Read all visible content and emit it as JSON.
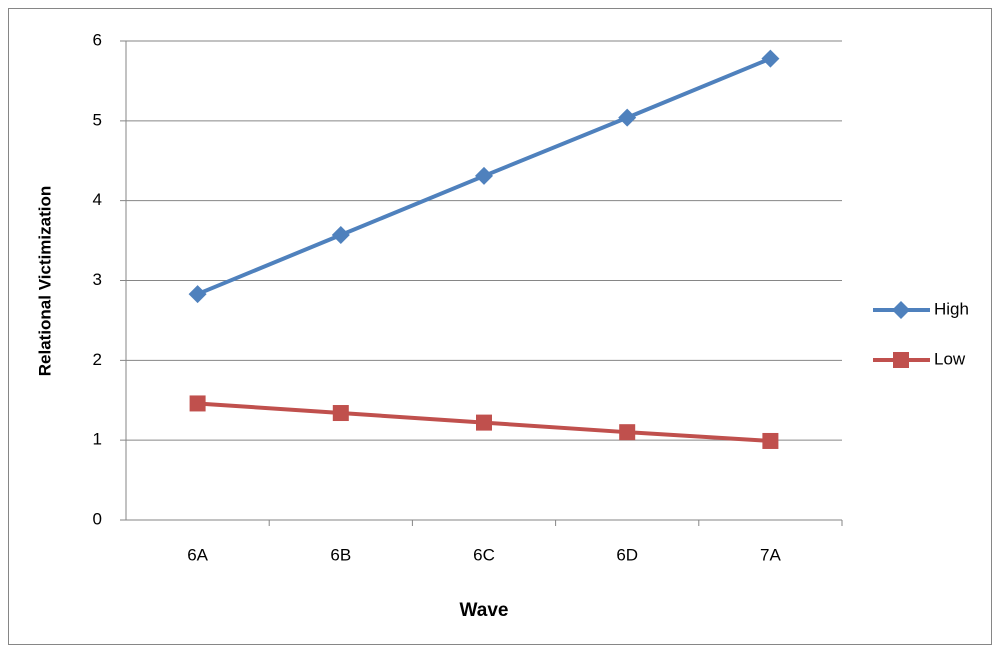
{
  "chart_data": {
    "type": "line",
    "x_label": "Wave",
    "y_label": "Relational Victimization",
    "categories": [
      "6A",
      "6B",
      "6C",
      "6D",
      "7A"
    ],
    "series": [
      {
        "name": "High",
        "color": "#4f81bd",
        "marker": "diamond",
        "values": [
          2.83,
          3.57,
          4.31,
          5.04,
          5.78
        ]
      },
      {
        "name": "Low",
        "color": "#c0504d",
        "marker": "square",
        "values": [
          1.46,
          1.34,
          1.22,
          1.1,
          0.99
        ]
      }
    ],
    "ylim": [
      0,
      6
    ],
    "yticks": [
      0,
      1,
      2,
      3,
      4,
      5,
      6
    ],
    "grid": true,
    "legend": "right"
  }
}
